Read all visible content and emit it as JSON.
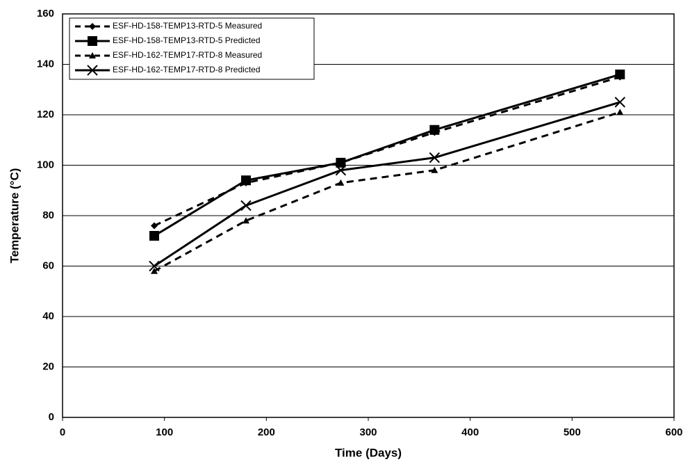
{
  "chart_data": {
    "type": "line",
    "x_label": "Time (Days)",
    "y_label": "Temperature (°C)",
    "x": [
      90,
      180,
      273,
      365,
      547
    ],
    "series": [
      {
        "name": "ESF-HD-158-TEMP13-RTD-5 Measured",
        "color": "#000000",
        "dash": true,
        "marker": "diamond",
        "values": [
          76,
          93,
          101,
          113,
          135
        ]
      },
      {
        "name": "ESF-HD-158-TEMP13-RTD-5 Predicted",
        "color": "#000000",
        "dash": false,
        "marker": "square",
        "values": [
          72,
          94,
          101,
          114,
          136
        ]
      },
      {
        "name": "ESF-HD-162-TEMP17-RTD-8 Measured",
        "color": "#000000",
        "dash": true,
        "marker": "triangle",
        "values": [
          58,
          78,
          93,
          98,
          121
        ]
      },
      {
        "name": "ESF-HD-162-TEMP17-RTD-8 Predicted",
        "color": "#000000",
        "dash": false,
        "marker": "x",
        "values": [
          60,
          84,
          98,
          103,
          125
        ]
      }
    ],
    "xlim": [
      0,
      600
    ],
    "xticks": [
      0,
      100,
      200,
      300,
      400,
      500,
      600
    ],
    "ylim": [
      0,
      160
    ],
    "yticks": [
      0,
      20,
      40,
      60,
      80,
      100,
      120,
      140,
      160
    ],
    "grid": true,
    "legend": "top-left"
  }
}
